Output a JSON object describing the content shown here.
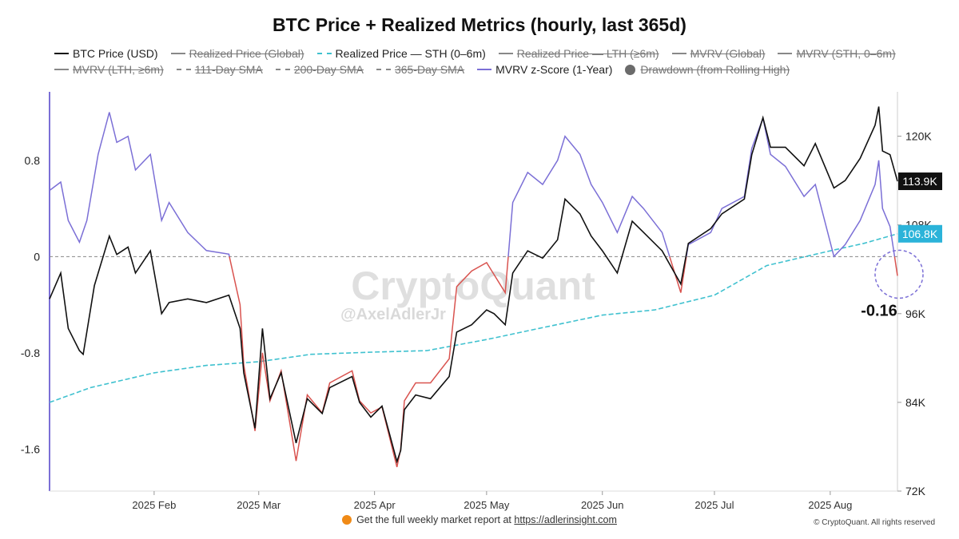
{
  "title": "BTC Price + Realized Metrics (hourly, last 365d)",
  "legend": [
    {
      "label": "BTC Price (USD)",
      "style": "solid",
      "color": "#111111",
      "active": true
    },
    {
      "label": "Realized Price (Global)",
      "style": "solid",
      "color": "#888888",
      "active": false
    },
    {
      "label": "Realized Price — STH (0–6m)",
      "style": "dashed",
      "color": "#3fc1cf",
      "active": true
    },
    {
      "label": "Realized Price — LTH (≥6m)",
      "style": "solid",
      "color": "#888888",
      "active": false
    },
    {
      "label": "MVRV (Global)",
      "style": "solid",
      "color": "#888888",
      "active": false
    },
    {
      "label": "MVRV (STH, 0–6m)",
      "style": "solid",
      "color": "#888888",
      "active": false
    },
    {
      "label": "MVRV (LTH, ≥6m)",
      "style": "solid",
      "color": "#888888",
      "active": false
    },
    {
      "label": "111-Day SMA",
      "style": "dashed",
      "color": "#888888",
      "active": false
    },
    {
      "label": "200-Day SMA",
      "style": "dashed",
      "color": "#888888",
      "active": false
    },
    {
      "label": "365-Day SMA",
      "style": "dashed",
      "color": "#888888",
      "active": false
    },
    {
      "label": "MVRV z-Score (1-Year)",
      "style": "solid",
      "color": "#7b6fd6",
      "active": true
    },
    {
      "label": "Drawdown (from Rolling High)",
      "style": "dot",
      "color": "#6b6b6b",
      "active": false
    }
  ],
  "watermark": {
    "brand": "CryptoQuant",
    "handle": "@AxelAdlerJr"
  },
  "footer": {
    "text": "Get the full weekly market report at",
    "link": "https://adlerinsight.com",
    "copyright": "© CryptoQuant. All rights reserved"
  },
  "chart_data": {
    "type": "line",
    "x_tick_labels": [
      "2025 Feb",
      "2025 Mar",
      "2025 Apr",
      "2025 May",
      "2025 Jun",
      "2025 Jul",
      "2025 Aug"
    ],
    "x_tick_dates": [
      "2025-02-01",
      "2025-03-01",
      "2025-04-01",
      "2025-05-01",
      "2025-06-01",
      "2025-07-01",
      "2025-08-01"
    ],
    "x_range": [
      "2025-01-04",
      "2025-08-19"
    ],
    "y_left": {
      "ticks": [
        0.8,
        0,
        -0.8,
        -1.6
      ],
      "range": [
        -1.95,
        1.37
      ]
    },
    "y_right": {
      "ticks": [
        "120K",
        "108K",
        "96K",
        "84K",
        "72K"
      ],
      "tick_values": [
        120000,
        108000,
        96000,
        84000,
        72000
      ],
      "range": [
        72000,
        126000
      ]
    },
    "last_values": {
      "btc_price": "113.9K",
      "sth_realized_price": "106.8K",
      "mvrv_z_score": "-0.16"
    },
    "colors": {
      "price": "#111111",
      "sth": "#3fc1cf",
      "zscore_positive": "#7b6fd6",
      "zscore_negative": "#d9534f",
      "zero_line": "#888888",
      "price_badge": "#111111",
      "sth_badge": "#2bb3d9"
    },
    "series": [
      {
        "name": "BTC Price (USD)",
        "axis": "right",
        "points": [
          [
            "2025-01-04",
            98000
          ],
          [
            "2025-01-07",
            101500
          ],
          [
            "2025-01-09",
            94000
          ],
          [
            "2025-01-12",
            91000
          ],
          [
            "2025-01-13",
            90500
          ],
          [
            "2025-01-16",
            99800
          ],
          [
            "2025-01-20",
            106500
          ],
          [
            "2025-01-22",
            104000
          ],
          [
            "2025-01-25",
            105000
          ],
          [
            "2025-01-27",
            101500
          ],
          [
            "2025-01-31",
            104500
          ],
          [
            "2025-02-03",
            96000
          ],
          [
            "2025-02-05",
            97500
          ],
          [
            "2025-02-10",
            98000
          ],
          [
            "2025-02-15",
            97500
          ],
          [
            "2025-02-21",
            98500
          ],
          [
            "2025-02-24",
            94000
          ],
          [
            "2025-02-25",
            88000
          ],
          [
            "2025-02-28",
            80500
          ],
          [
            "2025-03-02",
            94000
          ],
          [
            "2025-03-04",
            84500
          ],
          [
            "2025-03-07",
            88000
          ],
          [
            "2025-03-11",
            78500
          ],
          [
            "2025-03-14",
            84500
          ],
          [
            "2025-03-18",
            82500
          ],
          [
            "2025-03-20",
            86000
          ],
          [
            "2025-03-26",
            87500
          ],
          [
            "2025-03-28",
            84000
          ],
          [
            "2025-03-31",
            82000
          ],
          [
            "2025-04-03",
            83500
          ],
          [
            "2025-04-07",
            76000
          ],
          [
            "2025-04-08",
            77500
          ],
          [
            "2025-04-09",
            83000
          ],
          [
            "2025-04-12",
            85000
          ],
          [
            "2025-04-16",
            84500
          ],
          [
            "2025-04-21",
            87500
          ],
          [
            "2025-04-23",
            93500
          ],
          [
            "2025-04-27",
            94500
          ],
          [
            "2025-05-01",
            96500
          ],
          [
            "2025-05-03",
            96000
          ],
          [
            "2025-05-06",
            94500
          ],
          [
            "2025-05-08",
            101500
          ],
          [
            "2025-05-12",
            104500
          ],
          [
            "2025-05-16",
            103500
          ],
          [
            "2025-05-20",
            106000
          ],
          [
            "2025-05-22",
            111500
          ],
          [
            "2025-05-26",
            109500
          ],
          [
            "2025-05-29",
            106500
          ],
          [
            "2025-06-01",
            104500
          ],
          [
            "2025-06-05",
            101500
          ],
          [
            "2025-06-09",
            108500
          ],
          [
            "2025-06-12",
            107000
          ],
          [
            "2025-06-17",
            104500
          ],
          [
            "2025-06-22",
            100000
          ],
          [
            "2025-06-24",
            105500
          ],
          [
            "2025-06-30",
            107500
          ],
          [
            "2025-07-03",
            109500
          ],
          [
            "2025-07-09",
            111500
          ],
          [
            "2025-07-11",
            117500
          ],
          [
            "2025-07-14",
            122500
          ],
          [
            "2025-07-16",
            118500
          ],
          [
            "2025-07-20",
            118500
          ],
          [
            "2025-07-25",
            116000
          ],
          [
            "2025-07-28",
            119000
          ],
          [
            "2025-08-02",
            113000
          ],
          [
            "2025-08-05",
            114000
          ],
          [
            "2025-08-09",
            117000
          ],
          [
            "2025-08-13",
            121500
          ],
          [
            "2025-08-14",
            124000
          ],
          [
            "2025-08-15",
            118000
          ],
          [
            "2025-08-17",
            117500
          ],
          [
            "2025-08-19",
            113900
          ]
        ]
      },
      {
        "name": "Realized Price — STH (0–6m)",
        "axis": "right",
        "points": [
          [
            "2025-01-04",
            84000
          ],
          [
            "2025-01-15",
            86000
          ],
          [
            "2025-02-01",
            88000
          ],
          [
            "2025-02-15",
            89000
          ],
          [
            "2025-03-01",
            89500
          ],
          [
            "2025-03-15",
            90500
          ],
          [
            "2025-04-01",
            90800
          ],
          [
            "2025-04-15",
            91000
          ],
          [
            "2025-05-01",
            92500
          ],
          [
            "2025-05-15",
            94000
          ],
          [
            "2025-06-01",
            95800
          ],
          [
            "2025-06-15",
            96500
          ],
          [
            "2025-07-01",
            98500
          ],
          [
            "2025-07-15",
            102500
          ],
          [
            "2025-08-01",
            104500
          ],
          [
            "2025-08-10",
            105500
          ],
          [
            "2025-08-19",
            106800
          ]
        ]
      },
      {
        "name": "MVRV z-Score (1-Year)",
        "axis": "left",
        "points": [
          [
            "2025-01-04",
            0.55
          ],
          [
            "2025-01-07",
            0.62
          ],
          [
            "2025-01-09",
            0.3
          ],
          [
            "2025-01-12",
            0.12
          ],
          [
            "2025-01-14",
            0.3
          ],
          [
            "2025-01-17",
            0.85
          ],
          [
            "2025-01-20",
            1.2
          ],
          [
            "2025-01-22",
            0.95
          ],
          [
            "2025-01-25",
            1.0
          ],
          [
            "2025-01-27",
            0.72
          ],
          [
            "2025-01-31",
            0.85
          ],
          [
            "2025-02-03",
            0.3
          ],
          [
            "2025-02-05",
            0.45
          ],
          [
            "2025-02-10",
            0.2
          ],
          [
            "2025-02-15",
            0.05
          ],
          [
            "2025-02-21",
            0.02
          ],
          [
            "2025-02-24",
            -0.4
          ],
          [
            "2025-02-25",
            -0.9
          ],
          [
            "2025-02-28",
            -1.45
          ],
          [
            "2025-03-02",
            -0.8
          ],
          [
            "2025-03-04",
            -1.2
          ],
          [
            "2025-03-07",
            -0.95
          ],
          [
            "2025-03-11",
            -1.7
          ],
          [
            "2025-03-14",
            -1.15
          ],
          [
            "2025-03-18",
            -1.3
          ],
          [
            "2025-03-20",
            -1.05
          ],
          [
            "2025-03-26",
            -0.95
          ],
          [
            "2025-03-28",
            -1.2
          ],
          [
            "2025-03-31",
            -1.3
          ],
          [
            "2025-04-03",
            -1.25
          ],
          [
            "2025-04-07",
            -1.75
          ],
          [
            "2025-04-08",
            -1.6
          ],
          [
            "2025-04-09",
            -1.2
          ],
          [
            "2025-04-12",
            -1.05
          ],
          [
            "2025-04-16",
            -1.05
          ],
          [
            "2025-04-21",
            -0.85
          ],
          [
            "2025-04-23",
            -0.25
          ],
          [
            "2025-04-27",
            -0.12
          ],
          [
            "2025-05-01",
            -0.05
          ],
          [
            "2025-05-03",
            -0.15
          ],
          [
            "2025-05-06",
            -0.3
          ],
          [
            "2025-05-08",
            0.45
          ],
          [
            "2025-05-12",
            0.7
          ],
          [
            "2025-05-16",
            0.6
          ],
          [
            "2025-05-20",
            0.8
          ],
          [
            "2025-05-22",
            1.0
          ],
          [
            "2025-05-26",
            0.85
          ],
          [
            "2025-05-29",
            0.6
          ],
          [
            "2025-06-01",
            0.45
          ],
          [
            "2025-06-05",
            0.2
          ],
          [
            "2025-06-09",
            0.5
          ],
          [
            "2025-06-12",
            0.4
          ],
          [
            "2025-06-17",
            0.2
          ],
          [
            "2025-06-22",
            -0.3
          ],
          [
            "2025-06-24",
            0.1
          ],
          [
            "2025-06-30",
            0.2
          ],
          [
            "2025-07-03",
            0.4
          ],
          [
            "2025-07-09",
            0.5
          ],
          [
            "2025-07-11",
            0.9
          ],
          [
            "2025-07-14",
            1.15
          ],
          [
            "2025-07-16",
            0.85
          ],
          [
            "2025-07-20",
            0.75
          ],
          [
            "2025-07-25",
            0.5
          ],
          [
            "2025-07-28",
            0.6
          ],
          [
            "2025-08-02",
            0.0
          ],
          [
            "2025-08-05",
            0.1
          ],
          [
            "2025-08-09",
            0.3
          ],
          [
            "2025-08-13",
            0.6
          ],
          [
            "2025-08-14",
            0.8
          ],
          [
            "2025-08-15",
            0.4
          ],
          [
            "2025-08-17",
            0.25
          ],
          [
            "2025-08-19",
            -0.16
          ]
        ]
      }
    ]
  }
}
